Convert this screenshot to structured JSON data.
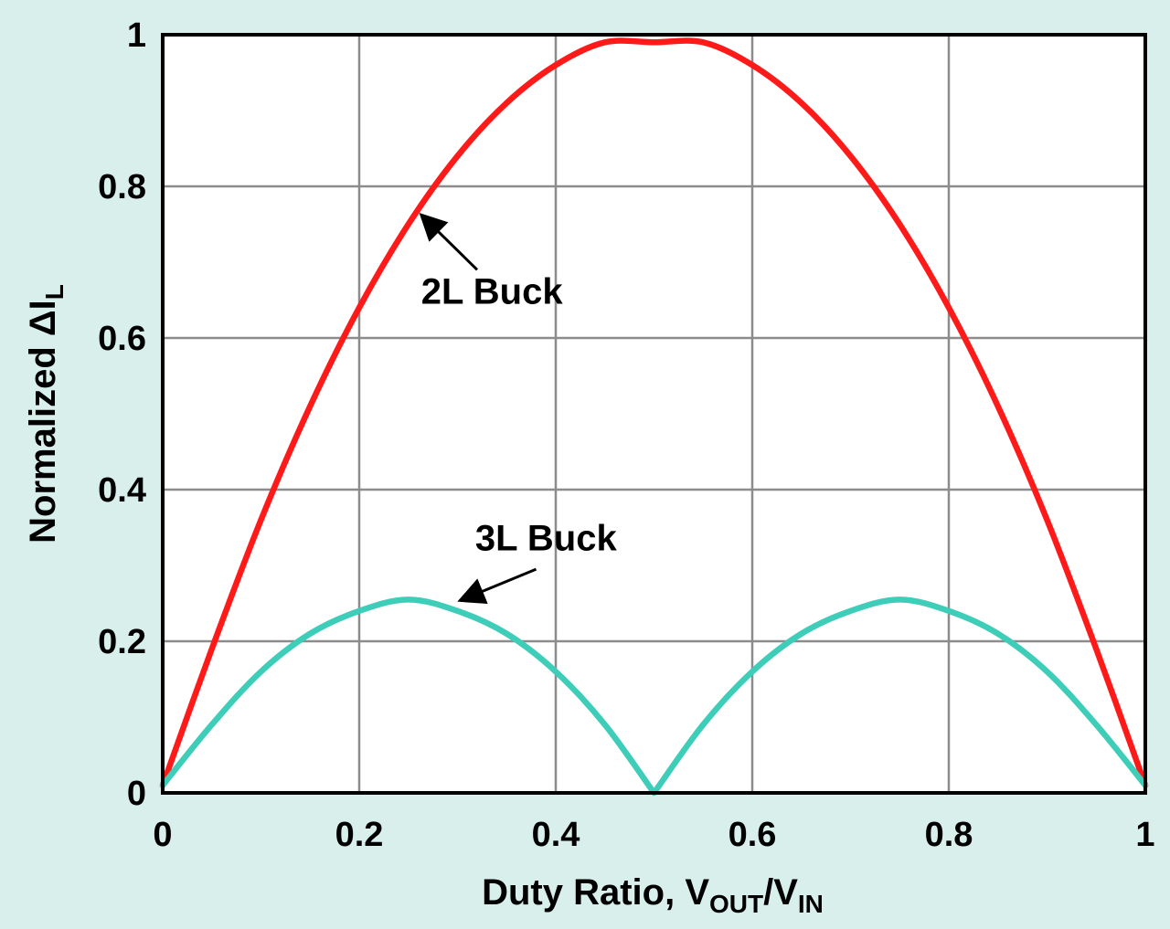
{
  "chart_data": {
    "type": "line",
    "title": "",
    "xlabel": {
      "main": "Duty Ratio, V",
      "sub1": "OUT",
      "mid": "/V",
      "sub2": "IN"
    },
    "ylabel": {
      "main": "Normalized ΔI",
      "sub": "L"
    },
    "xlim": [
      0,
      1
    ],
    "ylim": [
      0,
      1
    ],
    "x_ticks": [
      "0",
      "0.2",
      "0.4",
      "0.6",
      "0.8",
      "1"
    ],
    "y_ticks": [
      "0",
      "0.2",
      "0.4",
      "0.6",
      "0.8",
      "1"
    ],
    "grid": true,
    "legend": "none",
    "colors": {
      "background": "#d8efeb",
      "plot_bg": "#ffffff",
      "grid": "#8c8c8c"
    },
    "series": [
      {
        "name": "2L Buck",
        "color": "#ff1a1a",
        "x": [
          0,
          0.05,
          0.1,
          0.15,
          0.2,
          0.25,
          0.3,
          0.35,
          0.4,
          0.45,
          0.5,
          0.55,
          0.6,
          0.65,
          0.7,
          0.75,
          0.8,
          0.85,
          0.9,
          0.95,
          1
        ],
        "values": [
          0.01,
          0.19,
          0.36,
          0.51,
          0.64,
          0.75,
          0.84,
          0.91,
          0.96,
          0.99,
          0.99,
          0.99,
          0.96,
          0.91,
          0.84,
          0.75,
          0.64,
          0.51,
          0.36,
          0.19,
          0.01
        ]
      },
      {
        "name": "3L Buck",
        "color": "#3ecdb8",
        "x": [
          0,
          0.05,
          0.1,
          0.15,
          0.2,
          0.25,
          0.3,
          0.35,
          0.4,
          0.45,
          0.5,
          0.55,
          0.6,
          0.65,
          0.7,
          0.75,
          0.8,
          0.85,
          0.9,
          0.95,
          1
        ],
        "values": [
          0.01,
          0.09,
          0.16,
          0.21,
          0.24,
          0.255,
          0.24,
          0.21,
          0.16,
          0.09,
          0.0,
          0.09,
          0.16,
          0.21,
          0.24,
          0.255,
          0.24,
          0.21,
          0.16,
          0.09,
          0.01
        ]
      }
    ],
    "annotations": [
      {
        "text": "2L Buck",
        "x": 0.263,
        "y": 0.645,
        "arrow_to": [
          0.265,
          0.76
        ],
        "arrow_from": [
          0.32,
          0.69
        ]
      },
      {
        "text": "3L Buck",
        "x": 0.318,
        "y": 0.32,
        "arrow_to": [
          0.305,
          0.255
        ],
        "arrow_from": [
          0.38,
          0.295
        ]
      }
    ]
  }
}
